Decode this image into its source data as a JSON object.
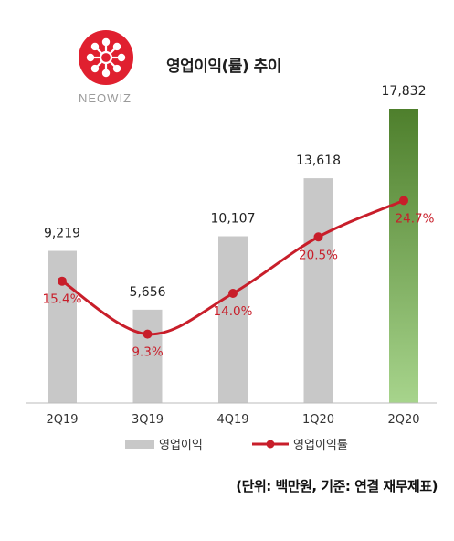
{
  "header": {
    "title": "영업이익(률) 추이",
    "brand": "NEOWIZ",
    "brand_color": "#e0202f"
  },
  "footer": {
    "unit_note": "(단위: 백만원, 기준: 연결 재무제표)"
  },
  "colors": {
    "bar": "#c8c8c8",
    "bar_highlight_top": "#4e7f2c",
    "bar_highlight_bottom": "#a7d48c",
    "line": "#c81e2a",
    "line_label": "#c81e2a",
    "axis": "#bbbbbb"
  },
  "chart_data": {
    "type": "bar",
    "title": "영업이익(률) 추이",
    "categories": [
      "2Q19",
      "3Q19",
      "4Q19",
      "1Q20",
      "2Q20"
    ],
    "series": [
      {
        "name": "영업이익",
        "type": "bar",
        "values": [
          9219,
          5656,
          10107,
          13618,
          17832
        ],
        "labels": [
          "9,219",
          "5,656",
          "10,107",
          "13,618",
          "17,832"
        ]
      },
      {
        "name": "영업이익률",
        "type": "line",
        "values": [
          15.4,
          9.3,
          14.0,
          20.5,
          24.7
        ],
        "labels": [
          "15.4%",
          "9.3%",
          "14.0%",
          "20.5%",
          "24.7%"
        ]
      }
    ],
    "highlight_category": "2Q20",
    "legend_position": "bottom",
    "grid": false,
    "unit": "(단위: 백만원, 기준: 연결 재무제표)"
  }
}
